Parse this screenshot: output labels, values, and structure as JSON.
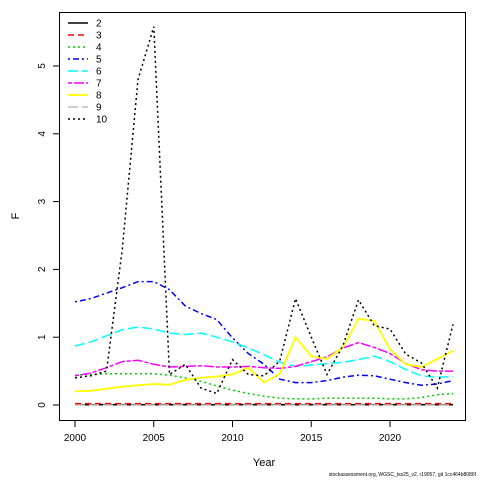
{
  "footer": "stockassessment.org, WGSC_tss25_v2, r19057, git 1cc464b8086f",
  "chart_data": {
    "type": "line",
    "xlabel": "Year",
    "ylabel": "F",
    "xlim": [
      2000,
      2024
    ],
    "ylim": [
      0,
      5.6
    ],
    "xticks": [
      2000,
      2005,
      2010,
      2015,
      2020
    ],
    "yticks": [
      0,
      1,
      2,
      3,
      4,
      5
    ],
    "legend_position": "top-left",
    "x": [
      2000,
      2001,
      2002,
      2003,
      2004,
      2005,
      2006,
      2007,
      2008,
      2009,
      2010,
      2011,
      2012,
      2013,
      2014,
      2015,
      2016,
      2017,
      2018,
      2019,
      2020,
      2021,
      2022,
      2023,
      2024
    ],
    "series": [
      {
        "name": "2",
        "color": "#000000",
        "dash": "solid",
        "values": [
          0.005,
          0.005,
          0.005,
          0.005,
          0.005,
          0.005,
          0.005,
          0.005,
          0.005,
          0.005,
          0.005,
          0.005,
          0.005,
          0.005,
          0.005,
          0.005,
          0.005,
          0.005,
          0.005,
          0.005,
          0.005,
          0.005,
          0.005,
          0.005,
          0.005
        ]
      },
      {
        "name": "3",
        "color": "#ff0000",
        "dash": "dashed",
        "values": [
          0.02,
          0.02,
          0.02,
          0.02,
          0.02,
          0.02,
          0.02,
          0.02,
          0.02,
          0.02,
          0.02,
          0.02,
          0.02,
          0.02,
          0.02,
          0.02,
          0.02,
          0.02,
          0.02,
          0.02,
          0.02,
          0.02,
          0.02,
          0.02,
          0.02
        ]
      },
      {
        "name": "4",
        "color": "#00cc00",
        "dash": "dotted",
        "values": [
          0.44,
          0.45,
          0.46,
          0.46,
          0.46,
          0.46,
          0.44,
          0.4,
          0.35,
          0.28,
          0.22,
          0.17,
          0.13,
          0.1,
          0.09,
          0.09,
          0.1,
          0.1,
          0.1,
          0.1,
          0.09,
          0.09,
          0.11,
          0.15,
          0.17
        ]
      },
      {
        "name": "5",
        "color": "#0000ff",
        "dash": "dashdot",
        "values": [
          1.52,
          1.57,
          1.65,
          1.73,
          1.82,
          1.82,
          1.7,
          1.46,
          1.35,
          1.26,
          0.99,
          0.76,
          0.6,
          0.38,
          0.33,
          0.33,
          0.36,
          0.41,
          0.44,
          0.43,
          0.38,
          0.33,
          0.29,
          0.31,
          0.36
        ]
      },
      {
        "name": "6",
        "color": "#00ffff",
        "dash": "longdash",
        "values": [
          0.87,
          0.93,
          1.02,
          1.11,
          1.15,
          1.12,
          1.06,
          1.04,
          1.06,
          1.0,
          0.93,
          0.84,
          0.74,
          0.63,
          0.57,
          0.59,
          0.61,
          0.63,
          0.67,
          0.72,
          0.64,
          0.52,
          0.43,
          0.41,
          0.42
        ]
      },
      {
        "name": "7",
        "color": "#ff00ff",
        "dash": "twodash",
        "values": [
          0.43,
          0.47,
          0.55,
          0.64,
          0.66,
          0.6,
          0.56,
          0.57,
          0.58,
          0.56,
          0.56,
          0.57,
          0.55,
          0.54,
          0.57,
          0.64,
          0.71,
          0.84,
          0.92,
          0.85,
          0.76,
          0.61,
          0.52,
          0.5,
          0.5
        ]
      },
      {
        "name": "8",
        "color": "#ffff00",
        "dash": "solid",
        "values": [
          0.2,
          0.21,
          0.24,
          0.27,
          0.29,
          0.31,
          0.3,
          0.37,
          0.4,
          0.42,
          0.45,
          0.55,
          0.33,
          0.46,
          1.0,
          0.72,
          0.68,
          0.85,
          1.27,
          1.24,
          0.82,
          0.6,
          0.56,
          0.68,
          0.8
        ]
      },
      {
        "name": "9",
        "color": "#bebebe",
        "dash": "longdash",
        "values": [
          0.0,
          0.0,
          0.0,
          0.0,
          0.0,
          0.0,
          0.0,
          0.0,
          0.0,
          0.0,
          0.0,
          0.0,
          0.0,
          0.0,
          0.0,
          0.0,
          0.0,
          0.0,
          0.0,
          0.0,
          0.0,
          0.0,
          0.0,
          0.0,
          0.0
        ]
      },
      {
        "name": "10",
        "color": "#000000",
        "dash": "dotted",
        "values": [
          0.4,
          0.43,
          0.5,
          2.3,
          4.8,
          5.58,
          0.45,
          0.6,
          0.25,
          0.17,
          0.67,
          0.45,
          0.43,
          0.65,
          1.57,
          1.0,
          0.45,
          0.87,
          1.55,
          1.17,
          1.12,
          0.75,
          0.62,
          0.25,
          1.19
        ]
      }
    ]
  }
}
